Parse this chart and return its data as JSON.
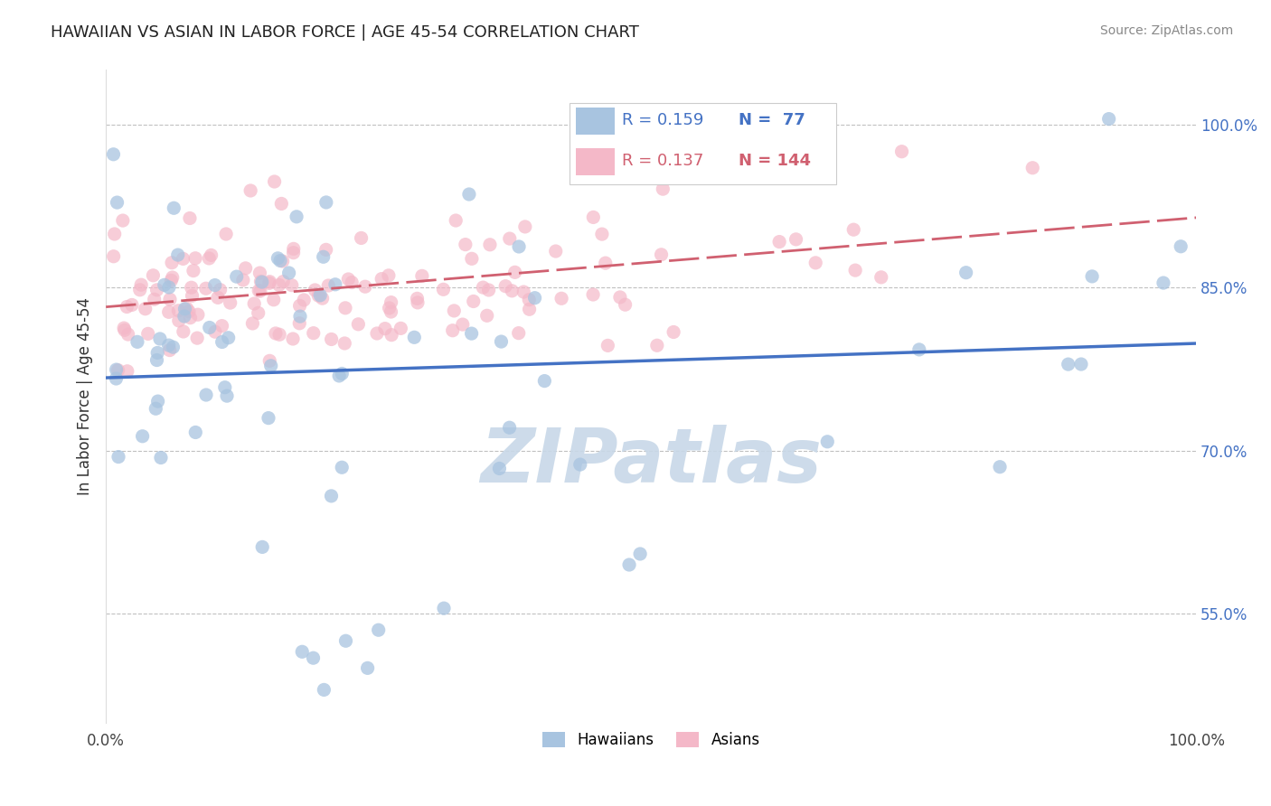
{
  "title": "HAWAIIAN VS ASIAN IN LABOR FORCE | AGE 45-54 CORRELATION CHART",
  "source_text": "Source: ZipAtlas.com",
  "ylabel": "In Labor Force | Age 45-54",
  "y_tick_labels_right": [
    "55.0%",
    "70.0%",
    "85.0%",
    "100.0%"
  ],
  "y_tick_right_vals": [
    0.55,
    0.7,
    0.85,
    1.0
  ],
  "hawaiian_R": 0.159,
  "hawaiian_N": 77,
  "asian_R": 0.137,
  "asian_N": 144,
  "legend_hawaiians": "Hawaiians",
  "legend_asians": "Asians",
  "hawaiian_color": "#a8c4e0",
  "hawaiian_line_color": "#4472c4",
  "asian_color": "#f4b8c8",
  "asian_line_color": "#d06070",
  "background_color": "#ffffff",
  "watermark": "ZIPatlas",
  "title_fontsize": 13,
  "watermark_color": "#c8d8e8",
  "xlim": [
    0.0,
    1.0
  ],
  "ylim": [
    0.45,
    1.05
  ]
}
